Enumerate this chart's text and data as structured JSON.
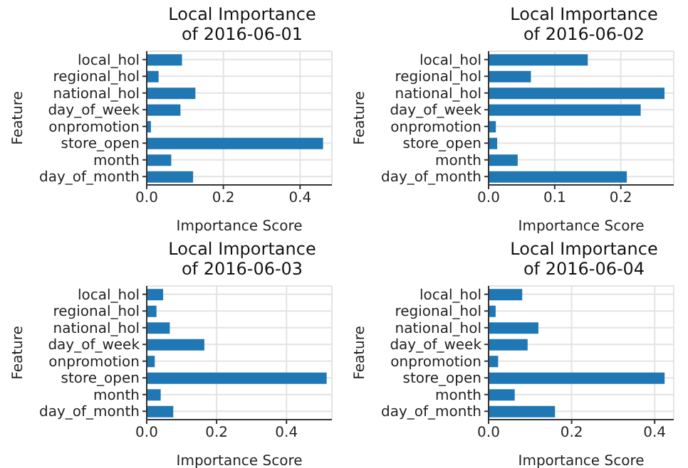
{
  "chart_data": [
    {
      "type": "bar",
      "orientation": "horizontal",
      "title": "Local Importance\nof 2016-06-01",
      "xlabel": "Importance Score",
      "ylabel": "Feature",
      "categories": [
        "local_hol",
        "regional_hol",
        "national_hol",
        "day_of_week",
        "onpromotion",
        "store_open",
        "month",
        "day_of_month"
      ],
      "values": [
        0.092,
        0.031,
        0.127,
        0.088,
        0.011,
        0.46,
        0.064,
        0.121
      ],
      "color": "#1f77b4",
      "xlim": [
        0,
        0.483
      ],
      "xticks": [
        {
          "value": 0,
          "label": "0.0"
        },
        {
          "value": 0.2,
          "label": "0.2"
        },
        {
          "value": 0.4,
          "label": "0.4"
        }
      ],
      "grid": true
    },
    {
      "type": "bar",
      "orientation": "horizontal",
      "title": "Local Importance\nof 2016-06-02",
      "xlabel": "Importance Score",
      "ylabel": "Feature",
      "categories": [
        "local_hol",
        "regional_hol",
        "national_hol",
        "day_of_week",
        "onpromotion",
        "store_open",
        "month",
        "day_of_month"
      ],
      "values": [
        0.15,
        0.064,
        0.266,
        0.23,
        0.011,
        0.013,
        0.044,
        0.209
      ],
      "color": "#1f77b4",
      "xlim": [
        0,
        0.28
      ],
      "xticks": [
        {
          "value": 0,
          "label": "0.0"
        },
        {
          "value": 0.1,
          "label": "0.1"
        },
        {
          "value": 0.2,
          "label": "0.2"
        }
      ],
      "grid": true
    },
    {
      "type": "bar",
      "orientation": "horizontal",
      "title": "Local Importance\nof 2016-06-03",
      "xlabel": "Importance Score",
      "ylabel": "Feature",
      "categories": [
        "local_hol",
        "regional_hol",
        "national_hol",
        "day_of_week",
        "onpromotion",
        "store_open",
        "month",
        "day_of_month"
      ],
      "values": [
        0.047,
        0.028,
        0.066,
        0.165,
        0.023,
        0.515,
        0.04,
        0.076
      ],
      "color": "#1f77b4",
      "xlim": [
        0,
        0.53
      ],
      "xticks": [
        {
          "value": 0,
          "label": "0.0"
        },
        {
          "value": 0.2,
          "label": "0.2"
        },
        {
          "value": 0.4,
          "label": "0.4"
        }
      ],
      "grid": true
    },
    {
      "type": "bar",
      "orientation": "horizontal",
      "title": "Local Importance\nof 2016-06-04",
      "xlabel": "Importance Score",
      "ylabel": "Feature",
      "categories": [
        "local_hol",
        "regional_hol",
        "national_hol",
        "day_of_week",
        "onpromotion",
        "store_open",
        "month",
        "day_of_month"
      ],
      "values": [
        0.081,
        0.017,
        0.12,
        0.094,
        0.023,
        0.424,
        0.063,
        0.16
      ],
      "color": "#1f77b4",
      "xlim": [
        0,
        0.446
      ],
      "xticks": [
        {
          "value": 0,
          "label": "0.0"
        },
        {
          "value": 0.2,
          "label": "0.2"
        },
        {
          "value": 0.4,
          "label": "0.4"
        }
      ],
      "grid": true
    }
  ]
}
